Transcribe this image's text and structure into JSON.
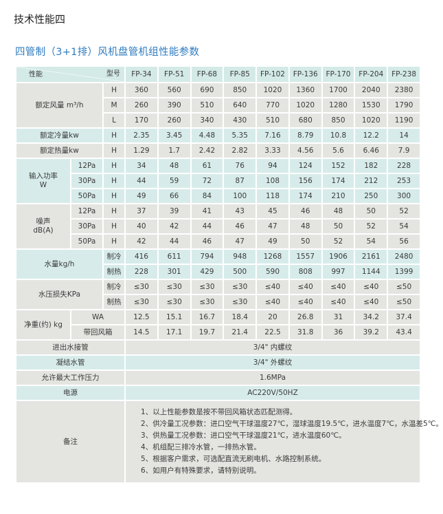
{
  "page_heading": "技术性能四",
  "section_title": "四管制（3+1排）风机盘管机组性能参数",
  "colors": {
    "title": "#2f7cc0",
    "grey_band": "#e4e4e1",
    "teal_band": "#d7ecea"
  },
  "table": {
    "header": {
      "property": "性能",
      "model": "型号",
      "models": [
        "FP-34",
        "FP-51",
        "FP-68",
        "FP-85",
        "FP-102",
        "FP-136",
        "FP-170",
        "FP-204",
        "FP-238"
      ]
    },
    "groups": [
      {
        "label": "额定风量 m³/h",
        "band": "g",
        "has_sub": false,
        "rows": [
          {
            "mode": "H",
            "values": [
              "360",
              "560",
              "690",
              "850",
              "1020",
              "1360",
              "1700",
              "2040",
              "2380"
            ]
          },
          {
            "mode": "M",
            "values": [
              "260",
              "390",
              "510",
              "640",
              "770",
              "1020",
              "1280",
              "1530",
              "1790"
            ]
          },
          {
            "mode": "L",
            "values": [
              "170",
              "260",
              "340",
              "430",
              "510",
              "680",
              "850",
              "1020",
              "1190"
            ]
          }
        ]
      },
      {
        "label": "额定冷量kw",
        "band": "t",
        "has_sub": false,
        "rows": [
          {
            "mode": "H",
            "values": [
              "2.35",
              "3.45",
              "4.48",
              "5.35",
              "7.16",
              "8.79",
              "10.8",
              "12.2",
              "14"
            ]
          }
        ]
      },
      {
        "label": "额定热量kw",
        "band": "g",
        "has_sub": false,
        "rows": [
          {
            "mode": "H",
            "values": [
              "1.29",
              "1.7",
              "2.42",
              "2.82",
              "3.33",
              "4.56",
              "5.6",
              "6.46",
              "7.9"
            ]
          }
        ]
      },
      {
        "label": "输入功率\nW",
        "band": "t",
        "has_sub": true,
        "rows": [
          {
            "sub": "12Pa",
            "mode": "H",
            "values": [
              "34",
              "48",
              "61",
              "76",
              "94",
              "124",
              "152",
              "182",
              "228"
            ]
          },
          {
            "sub": "30Pa",
            "mode": "H",
            "values": [
              "44",
              "59",
              "72",
              "87",
              "108",
              "156",
              "174",
              "212",
              "253"
            ]
          },
          {
            "sub": "50Pa",
            "mode": "H",
            "values": [
              "49",
              "66",
              "84",
              "100",
              "118",
              "174",
              "210",
              "250",
              "300"
            ]
          }
        ]
      },
      {
        "label": "噪声\ndB(A)",
        "band": "g",
        "has_sub": true,
        "rows": [
          {
            "sub": "12Pa",
            "mode": "H",
            "values": [
              "37",
              "39",
              "41",
              "43",
              "45",
              "46",
              "48",
              "50",
              "52"
            ]
          },
          {
            "sub": "30Pa",
            "mode": "H",
            "values": [
              "40",
              "42",
              "44",
              "46",
              "47",
              "48",
              "50",
              "52",
              "54"
            ]
          },
          {
            "sub": "50Pa",
            "mode": "H",
            "values": [
              "42",
              "44",
              "46",
              "47",
              "49",
              "50",
              "52",
              "54",
              "56"
            ]
          }
        ]
      },
      {
        "label": "水量kg/h",
        "band": "t",
        "has_sub": false,
        "rows": [
          {
            "mode": "制冷",
            "values": [
              "416",
              "611",
              "794",
              "948",
              "1268",
              "1557",
              "1906",
              "2161",
              "2480"
            ]
          },
          {
            "mode": "制热",
            "values": [
              "228",
              "301",
              "429",
              "500",
              "590",
              "808",
              "997",
              "1144",
              "1399"
            ]
          }
        ]
      },
      {
        "label": "水压损失KPa",
        "band": "g",
        "has_sub": false,
        "rows": [
          {
            "mode": "制冷",
            "values": [
              "≤30",
              "≤30",
              "≤30",
              "≤30",
              "≤40",
              "≤40",
              "≤40",
              "≤40",
              "≤50"
            ]
          },
          {
            "mode": "制热",
            "values": [
              "≤30",
              "≤30",
              "≤30",
              "≤30",
              "≤40",
              "≤40",
              "≤40",
              "≤40",
              "≤50"
            ]
          }
        ]
      },
      {
        "label": "净重(约) kg",
        "band": "g",
        "has_sub": true,
        "rows": [
          {
            "sub": "WA",
            "values": [
              "12.5",
              "15.1",
              "16.7",
              "18.4",
              "20",
              "26.8",
              "31",
              "34.2",
              "37.4"
            ]
          },
          {
            "sub": "带回风箱",
            "values": [
              "14.5",
              "17.1",
              "19.7",
              "21.4",
              "22.5",
              "31.8",
              "36",
              "39.2",
              "43.4"
            ]
          }
        ]
      }
    ],
    "specs": [
      {
        "label": "进出水接管",
        "value": "3/4\" 内螺纹",
        "band": "g"
      },
      {
        "label": "凝结水管",
        "value": "3/4\" 外螺纹",
        "band": "t"
      },
      {
        "label": "允许最大工作压力",
        "value": "1.6MPa",
        "band": "g"
      },
      {
        "label": "电源",
        "value": "AC220V/50HZ",
        "band": "t"
      }
    ],
    "notes": {
      "label": "备注",
      "lines": [
        "1、以上性能参数是按不带回风箱状态匹配测得。",
        "2、供冷量工况参数：进口空气干球温度27℃，湿球温度19.5℃，进水温度7℃，水温差5℃。",
        "3、供热量工况参数：进口空气干球温度21℃，进水温度60℃。",
        "4、机组配三排冷水管，一排热水管。",
        "5、根据客户需求，可选配直流无刷电机、水路控制系统。",
        "6、如用户有特殊要求，请特别说明。"
      ]
    }
  }
}
